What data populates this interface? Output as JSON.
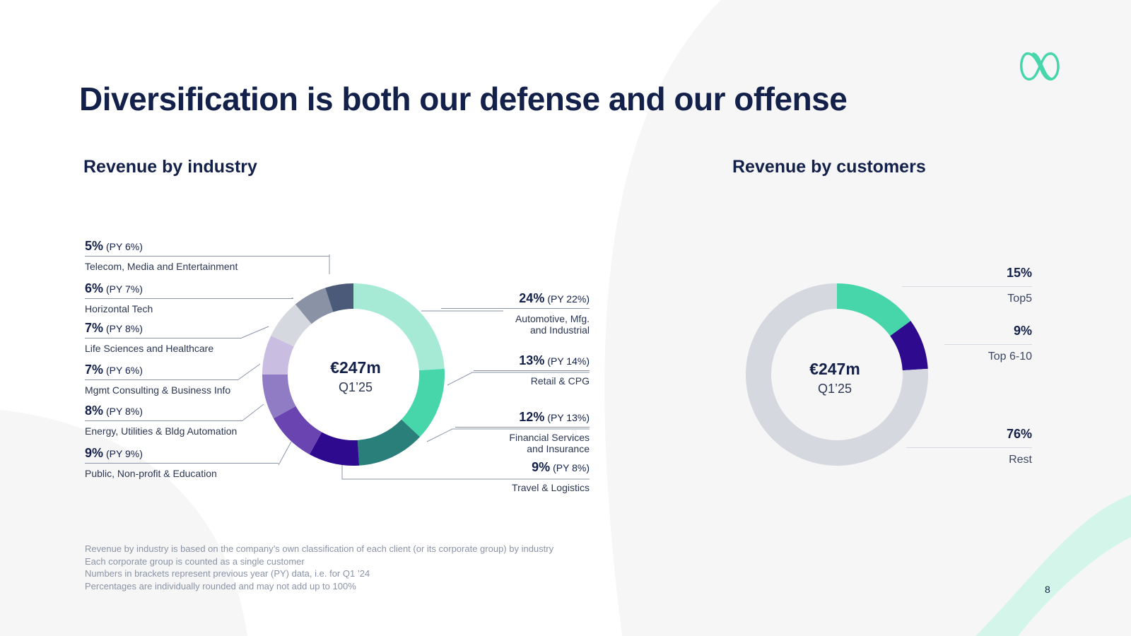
{
  "title": "Diversification is both our defense and our offense",
  "page_number": "8",
  "colors": {
    "navy": "#13214a",
    "mint_light": "#a6ead5",
    "mint": "#47d6aa",
    "teal": "#2a7f7a",
    "indigo": "#2e0a8e",
    "purple": "#6a44b0",
    "lavender": "#8f7cc4",
    "lavender_light": "#c9bde2",
    "grey_light": "#d5d8df",
    "grey_blue": "#8993a5",
    "slate": "#4a5a78",
    "rest_grey": "#d5d8df"
  },
  "footnotes": [
    "Revenue by industry is based on the company’s own classification of each client (or its corporate group) by industry",
    "Each corporate group is counted as a single customer",
    "Numbers in brackets represent previous year (PY) data, i.e. for Q1 ’24",
    "Percentages are individually rounded and may not add up to 100%"
  ],
  "chart_data": [
    {
      "type": "pie",
      "title": "Revenue by industry",
      "center_value": "€247m",
      "center_label": "Q1’25",
      "slices": [
        {
          "pct_label": "24%",
          "py_label": "(PY 22%)",
          "name": "Automotive, Mfg.\nand Industrial",
          "value": 24,
          "color": "#a6ead5"
        },
        {
          "pct_label": "13%",
          "py_label": "(PY 14%)",
          "name": "Retail & CPG",
          "value": 13,
          "color": "#47d6aa"
        },
        {
          "pct_label": "12%",
          "py_label": "(PY 13%)",
          "name": "Financial Services\nand Insurance",
          "value": 12,
          "color": "#2a7f7a"
        },
        {
          "pct_label": "9%",
          "py_label": "(PY 8%)",
          "name": "Travel & Logistics",
          "value": 9,
          "color": "#2e0a8e"
        },
        {
          "pct_label": "9%",
          "py_label": "(PY 9%)",
          "name": "Public, Non-profit & Education",
          "value": 9,
          "color": "#6a44b0"
        },
        {
          "pct_label": "8%",
          "py_label": "(PY 8%)",
          "name": "Energy, Utilities & Bldg Automation",
          "value": 8,
          "color": "#8f7cc4"
        },
        {
          "pct_label": "7%",
          "py_label": "(PY 6%)",
          "name": "Mgmt Consulting & Business Info",
          "value": 7,
          "color": "#c9bde2"
        },
        {
          "pct_label": "7%",
          "py_label": "(PY 8%)",
          "name": "Life Sciences and Healthcare",
          "value": 7,
          "color": "#d5d8df"
        },
        {
          "pct_label": "6%",
          "py_label": "(PY 7%)",
          "name": "Horizontal Tech",
          "value": 6,
          "color": "#8993a5"
        },
        {
          "pct_label": "5%",
          "py_label": "(PY 6%)",
          "name": "Telecom, Media and Entertainment",
          "value": 5,
          "color": "#4a5a78"
        }
      ]
    },
    {
      "type": "pie",
      "title": "Revenue by customers",
      "center_value": "€247m",
      "center_label": "Q1’25",
      "slices": [
        {
          "pct_label": "15%",
          "name": "Top5",
          "value": 15,
          "color": "#47d6aa"
        },
        {
          "pct_label": "9%",
          "name": "Top 6-10",
          "value": 9,
          "color": "#2e0a8e"
        },
        {
          "pct_label": "76%",
          "name": "Rest",
          "value": 76,
          "color": "#d5d8df"
        }
      ]
    }
  ]
}
